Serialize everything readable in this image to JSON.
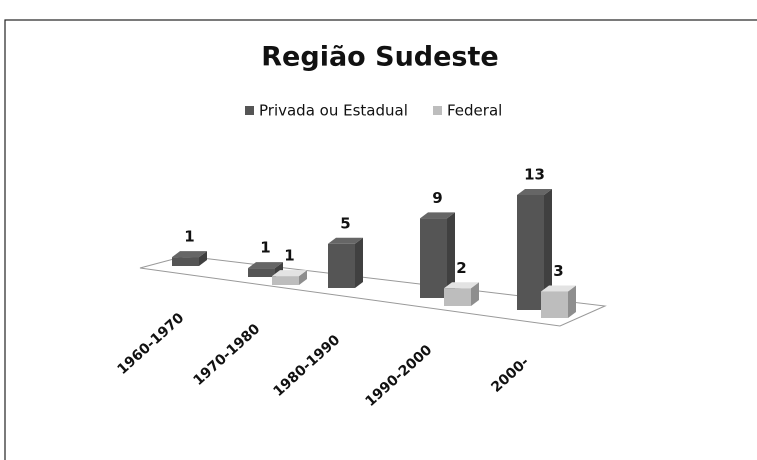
{
  "chart_data": {
    "type": "bar3d",
    "title": "Região Sudeste",
    "categories": [
      "1960-1970",
      "1970-1980",
      "1980-1990",
      "1990-2000",
      "2000-"
    ],
    "series": [
      {
        "name": "Privada ou Estadual",
        "color": "#555555",
        "values": [
          1,
          1,
          5,
          9,
          13
        ]
      },
      {
        "name": "Federal",
        "color": "#bdbdbd",
        "values": [
          null,
          1,
          null,
          2,
          3
        ]
      }
    ],
    "legend": "top"
  }
}
